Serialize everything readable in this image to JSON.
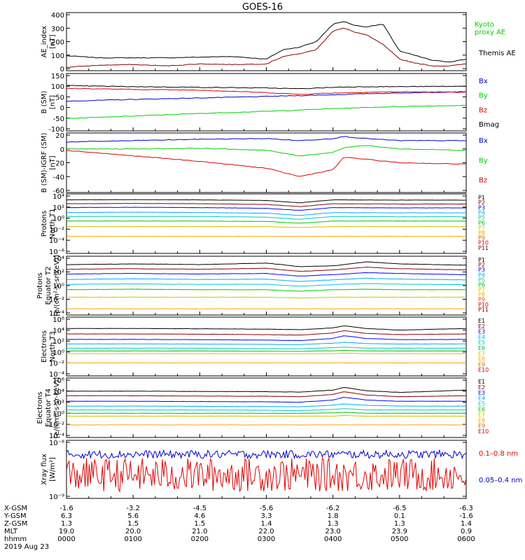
{
  "title": "GOES-16",
  "colors": {
    "black": "#000000",
    "red": "#e00000",
    "green": "#00d000",
    "blue": "#0000d0",
    "ch": [
      "#000000",
      "#8b0000",
      "#0000ff",
      "#00aaff",
      "#00c8c8",
      "#00c800",
      "#c8c800",
      "#ffa500",
      "#e06000",
      "#e00000",
      "#800000"
    ]
  },
  "panels": [
    {
      "id": "ae",
      "ylabel": [
        "AE_index",
        "[nT]"
      ],
      "ticks": [
        "400",
        "300",
        "200",
        "100",
        "0"
      ],
      "legend": [
        {
          "text": "Kyoto",
          "color": "#00d000"
        },
        {
          "text": "proxy AE",
          "color": "#00d000"
        },
        {
          "text": "Themis AE",
          "color": "#000000"
        }
      ]
    },
    {
      "id": "bsm",
      "ylabel": [
        "B (SM)",
        "[nT]"
      ],
      "ticks": [
        "150",
        "100",
        "50",
        "0",
        "-50",
        "-100"
      ],
      "legend": [
        {
          "text": "Bx",
          "color": "#0000d0"
        },
        {
          "text": "By",
          "color": "#00d000"
        },
        {
          "text": "Bz",
          "color": "#e00000"
        },
        {
          "text": "Bmag",
          "color": "#000000"
        }
      ]
    },
    {
      "id": "bigrf",
      "ylabel": [
        "B (SM)-IGRF (SM)",
        "[nT]"
      ],
      "ticks": [
        "20",
        "0",
        "-20",
        "-40",
        "-60"
      ],
      "legend": [
        {
          "text": "Bx",
          "color": "#0000d0"
        },
        {
          "text": "By",
          "color": "#00d000"
        },
        {
          "text": "Bz",
          "color": "#e00000"
        }
      ]
    },
    {
      "id": "pn",
      "ylabel": [
        "Protons",
        "North T1"
      ],
      "ticks": [
        "10⁴",
        "10²",
        "10⁰",
        "10⁻²",
        "10⁻⁴",
        "10⁻⁶"
      ],
      "channels": [
        "P1",
        "P2",
        "P3",
        "P4",
        "P5",
        "P6",
        "P7",
        "P8",
        "P9",
        "P10",
        "P11"
      ]
    },
    {
      "id": "pe",
      "ylabel": [
        "Protons",
        "Equator T2",
        "[p/(cm²-s-sr-keV)]"
      ],
      "ticks": [
        "10⁴",
        "10²",
        "10⁰",
        "10⁻²",
        "10⁻⁴"
      ],
      "channels": [
        "P1",
        "P2",
        "P3",
        "P4",
        "P5",
        "P6",
        "P7",
        "P8",
        "P9",
        "P10",
        "P11"
      ]
    },
    {
      "id": "en",
      "ylabel": [
        "Electrons",
        "North T3"
      ],
      "ticks": [
        "10⁶",
        "10⁴",
        "10²",
        "10⁰",
        "10⁻²",
        "10⁻⁴"
      ],
      "channels": [
        "E1",
        "E2",
        "E3",
        "E4",
        "E5",
        "E6",
        "E7",
        "E8",
        "E9",
        "E10"
      ]
    },
    {
      "id": "ee",
      "ylabel": [
        "Electrons",
        "Equator T4",
        "[e/(cm²-s-sr-keV)]"
      ],
      "ticks": [
        "10⁶",
        "10⁴",
        "10²",
        "10⁰",
        "10⁻²",
        "10⁻⁴"
      ],
      "channels": [
        "E1",
        "E2",
        "E3",
        "E4",
        "E5",
        "E6",
        "E7",
        "E8",
        "E9",
        "E10"
      ]
    },
    {
      "id": "xray",
      "ylabel": [
        "Xray flux",
        "[W/m²]"
      ],
      "ticks": [
        "10⁻⁸",
        "10⁻⁹"
      ],
      "legend": [
        {
          "text": "0.1–0.8 nm",
          "color": "#e00000"
        },
        {
          "text": "0.05–0.4 nm",
          "color": "#0000d0"
        }
      ]
    }
  ],
  "x_axis": {
    "row_labels": [
      "X-GSM",
      "Y-GSM",
      "Z-GSM",
      "MLT",
      "hhmm"
    ],
    "date": "2019 Aug 23",
    "columns": [
      [
        "-1.6",
        "6.3",
        "1.3",
        "19.0",
        "0000"
      ],
      [
        "-3.2",
        "5.6",
        "1.5",
        "20.0",
        "0100"
      ],
      [
        "-4.5",
        "4.6",
        "1.5",
        "21.0",
        "0200"
      ],
      [
        "-5.6",
        "3.3",
        "1.4",
        "22.0",
        "0300"
      ],
      [
        "-6.2",
        "1.8",
        "1.3",
        "23.0",
        "0400"
      ],
      [
        "-6.5",
        "0.1",
        "1.3",
        "23.9",
        "0500"
      ],
      [
        "-6.3",
        "-1.6",
        "1.4",
        "0.9",
        "0600"
      ]
    ]
  },
  "chart_data": [
    {
      "type": "line",
      "title": "GOES-16",
      "ylabel": "AE_index [nT]",
      "xlabel": "hhmm",
      "ylim": [
        0,
        400
      ],
      "x": [
        "0000",
        "0030",
        "0100",
        "0130",
        "0200",
        "0230",
        "0300",
        "0315",
        "0330",
        "0345",
        "0400",
        "0410",
        "0420",
        "0430",
        "0445",
        "0500",
        "0515",
        "0530",
        "0545",
        "0600"
      ],
      "series": [
        {
          "name": "Themis AE",
          "values": [
            95,
            80,
            80,
            80,
            85,
            90,
            70,
            140,
            160,
            200,
            330,
            350,
            320,
            310,
            330,
            130,
            95,
            60,
            50,
            70
          ]
        },
        {
          "name": "Kyoto proxy AE",
          "values": [
            10,
            25,
            30,
            20,
            35,
            30,
            35,
            90,
            110,
            140,
            280,
            300,
            270,
            250,
            180,
            70,
            40,
            20,
            20,
            35
          ]
        }
      ]
    },
    {
      "type": "line",
      "ylabel": "B (SM) [nT]",
      "xlabel": "hhmm",
      "ylim": [
        -100,
        150
      ],
      "x": [
        "0000",
        "0100",
        "0200",
        "0300",
        "0330",
        "0400",
        "0430",
        "0500",
        "0600"
      ],
      "series": [
        {
          "name": "Bx",
          "values": [
            30,
            38,
            45,
            52,
            56,
            60,
            65,
            68,
            75
          ]
        },
        {
          "name": "By",
          "values": [
            -52,
            -40,
            -28,
            -18,
            -12,
            -5,
            0,
            5,
            10
          ]
        },
        {
          "name": "Bz",
          "values": [
            90,
            85,
            82,
            70,
            62,
            68,
            72,
            74,
            72
          ]
        },
        {
          "name": "Bmag",
          "values": [
            103,
            98,
            95,
            92,
            88,
            95,
            98,
            98,
            100
          ]
        }
      ]
    },
    {
      "type": "line",
      "ylabel": "B (SM)-IGRF (SM) [nT]",
      "xlabel": "hhmm",
      "ylim": [
        -60,
        20
      ],
      "x": [
        "0000",
        "0100",
        "0200",
        "0300",
        "0330",
        "0400",
        "0410",
        "0430",
        "0500",
        "0600"
      ],
      "series": [
        {
          "name": "Bx",
          "values": [
            10,
            12,
            14,
            15,
            12,
            15,
            18,
            15,
            12,
            12
          ]
        },
        {
          "name": "By",
          "values": [
            0,
            0,
            1,
            -2,
            -10,
            -5,
            2,
            5,
            0,
            -2
          ]
        },
        {
          "name": "Bz",
          "values": [
            -2,
            -10,
            -18,
            -28,
            -40,
            -30,
            -12,
            -15,
            -20,
            -22
          ]
        }
      ]
    },
    {
      "type": "line",
      "ylabel": "Protons North T1",
      "xlabel": "hhmm",
      "ylim": [
        1e-06,
        10000.0
      ],
      "x": [
        "0000",
        "0100",
        "0200",
        "0300",
        "0330",
        "0400",
        "0500",
        "0600"
      ],
      "series": [
        {
          "name": "P1",
          "values": [
            2000,
            2200,
            2000,
            1500,
            600,
            2000,
            1800,
            1800
          ]
        },
        {
          "name": "P2",
          "values": [
            400,
            450,
            400,
            300,
            120,
            400,
            350,
            350
          ]
        },
        {
          "name": "P3",
          "values": [
            80,
            90,
            80,
            60,
            25,
            80,
            70,
            70
          ]
        },
        {
          "name": "P4",
          "values": [
            10,
            12,
            10,
            8,
            3,
            10,
            9,
            9
          ]
        },
        {
          "name": "P5",
          "values": [
            2,
            2,
            2,
            1.5,
            0.6,
            2,
            1.8,
            1.8
          ]
        },
        {
          "name": "P6",
          "values": [
            0.3,
            0.3,
            0.3,
            0.25,
            0.12,
            0.3,
            0.3,
            0.3
          ]
        },
        {
          "name": "P7",
          "values": [
            0.03,
            0.03,
            0.03,
            0.03,
            0.02,
            0.03,
            0.03,
            0.03
          ]
        },
        {
          "name": "P8",
          "values": [
            0.0005,
            0.0005,
            0.0005,
            0.0005,
            0.0005,
            0.0005,
            0.0005,
            0.0005
          ]
        }
      ]
    },
    {
      "type": "line",
      "ylabel": "Protons Equator T2 [p/(cm²-s-sr-keV)]",
      "xlabel": "hhmm",
      "ylim": [
        0.0001,
        10000.0
      ],
      "x": [
        "0000",
        "0100",
        "0200",
        "0300",
        "0330",
        "0400",
        "0430",
        "0500",
        "0600"
      ],
      "series": [
        {
          "name": "P1",
          "values": [
            1200,
            1500,
            1200,
            2000,
            600,
            800,
            3000,
            1500,
            1000
          ]
        },
        {
          "name": "P2",
          "values": [
            250,
            300,
            250,
            350,
            120,
            200,
            500,
            300,
            200
          ]
        },
        {
          "name": "P3",
          "values": [
            50,
            60,
            50,
            60,
            25,
            40,
            80,
            60,
            40
          ]
        },
        {
          "name": "P4",
          "values": [
            8,
            10,
            8,
            9,
            4,
            7,
            12,
            9,
            7
          ]
        },
        {
          "name": "P5",
          "values": [
            1.5,
            1.8,
            1.5,
            1.6,
            0.8,
            1.4,
            2,
            1.6,
            1.4
          ]
        },
        {
          "name": "P6",
          "values": [
            0.25,
            0.3,
            0.25,
            0.25,
            0.15,
            0.25,
            0.3,
            0.25,
            0.25
          ]
        },
        {
          "name": "P7",
          "values": [
            0.02,
            0.02,
            0.02,
            0.02,
            0.015,
            0.02,
            0.02,
            0.02,
            0.02
          ]
        },
        {
          "name": "P8",
          "values": [
            0.0004,
            0.0004,
            0.0004,
            0.0004,
            0.0004,
            0.0004,
            0.0004,
            0.0004,
            0.0004
          ]
        }
      ]
    },
    {
      "type": "line",
      "ylabel": "Electrons North T3",
      "xlabel": "hhmm",
      "ylim": [
        0.0001,
        1000000.0
      ],
      "x": [
        "0000",
        "0100",
        "0200",
        "0300",
        "0330",
        "0400",
        "0410",
        "0430",
        "0500",
        "0600"
      ],
      "series": [
        {
          "name": "E1",
          "values": [
            20000,
            20000,
            18000,
            15000,
            12000,
            25000,
            60000,
            20000,
            10000,
            20000
          ]
        },
        {
          "name": "E2",
          "values": [
            2000,
            2000,
            1800,
            1500,
            1200,
            3000,
            8000,
            2500,
            1500,
            2000
          ]
        },
        {
          "name": "E3",
          "values": [
            200,
            200,
            180,
            150,
            120,
            300,
            900,
            300,
            180,
            200
          ]
        },
        {
          "name": "E4",
          "values": [
            30,
            30,
            28,
            25,
            22,
            40,
            60,
            35,
            28,
            30
          ]
        },
        {
          "name": "E5",
          "values": [
            5,
            5,
            5,
            4,
            4,
            6,
            8,
            5,
            5,
            5
          ]
        },
        {
          "name": "E6",
          "values": [
            1.5,
            1.5,
            1.5,
            1.4,
            1.3,
            1.6,
            2,
            1.5,
            1.5,
            1.5
          ]
        },
        {
          "name": "E7",
          "values": [
            0.5,
            0.5,
            0.5,
            0.5,
            0.5,
            0.5,
            0.6,
            0.5,
            0.5,
            0.5
          ]
        },
        {
          "name": "E8",
          "values": [
            0.01,
            0.01,
            0.01,
            0.01,
            0.01,
            0.01,
            0.01,
            0.01,
            0.01,
            0.01
          ]
        }
      ]
    },
    {
      "type": "line",
      "ylabel": "Electrons Equator T4 [e/(cm²-s-sr-keV)]",
      "xlabel": "hhmm",
      "ylim": [
        0.0001,
        1000000.0
      ],
      "x": [
        "0000",
        "0100",
        "0200",
        "0300",
        "0330",
        "0400",
        "0410",
        "0430",
        "0500",
        "0600"
      ],
      "series": [
        {
          "name": "E1",
          "values": [
            10000,
            10000,
            9000,
            8000,
            7000,
            15000,
            50000,
            12000,
            6000,
            15000
          ]
        },
        {
          "name": "E2",
          "values": [
            1500,
            1500,
            1300,
            1200,
            1000,
            2500,
            8000,
            2000,
            1000,
            1500
          ]
        },
        {
          "name": "E3",
          "values": [
            150,
            150,
            130,
            120,
            100,
            250,
            800,
            250,
            150,
            150
          ]
        },
        {
          "name": "E4",
          "values": [
            20,
            20,
            18,
            17,
            15,
            30,
            50,
            28,
            20,
            20
          ]
        },
        {
          "name": "E5",
          "values": [
            4,
            4,
            4,
            3.5,
            3,
            5,
            7,
            4,
            4,
            4
          ]
        },
        {
          "name": "E6",
          "values": [
            1,
            1,
            1,
            1,
            1,
            1.2,
            1.5,
            1,
            1,
            1
          ]
        },
        {
          "name": "E7",
          "values": [
            0.3,
            0.3,
            0.3,
            0.3,
            0.3,
            0.3,
            0.4,
            0.3,
            0.3,
            0.3
          ]
        },
        {
          "name": "E8",
          "values": [
            0.008,
            0.008,
            0.008,
            0.008,
            0.008,
            0.008,
            0.008,
            0.008,
            0.008,
            0.008
          ]
        }
      ]
    },
    {
      "type": "line",
      "ylabel": "Xray flux [W/m²]",
      "xlabel": "hhmm",
      "ylim": [
        1e-09,
        1e-08
      ],
      "x": [
        "0000",
        "0100",
        "0200",
        "0300",
        "0330",
        "0400",
        "0500",
        "0600"
      ],
      "series": [
        {
          "name": "0.05–0.4 nm",
          "values": [
            6e-09,
            6e-09,
            6e-09,
            6e-09,
            6e-09,
            6e-09,
            6e-09,
            6e-09
          ]
        },
        {
          "name": "0.1–0.8 nm",
          "values": [
            2.5e-09,
            2.5e-09,
            2.5e-09,
            2.5e-09,
            2.5e-09,
            2.5e-09,
            2.5e-09,
            2.5e-09
          ]
        }
      ]
    }
  ]
}
